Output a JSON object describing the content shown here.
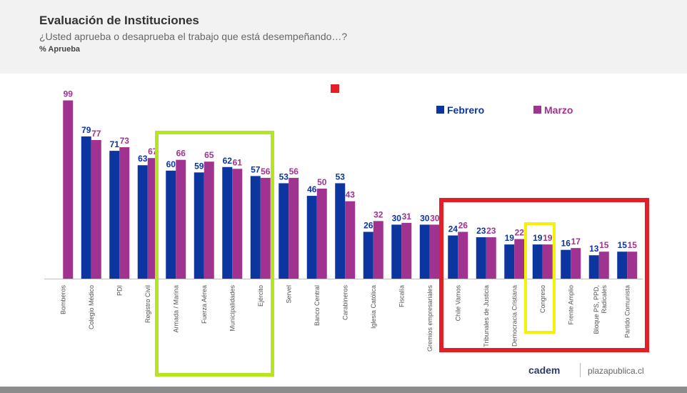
{
  "header": {
    "title": "Evaluación de Instituciones",
    "subtitle": "¿Usted aprueba o desaprueba el trabajo que está desempeñando…?",
    "measure": "% Aprueba"
  },
  "colors": {
    "febrero": "#0d35a0",
    "marzo": "#a0338f",
    "highlight_green": "#b5e61d",
    "highlight_red": "#e41e26",
    "highlight_yellow": "#f5f20a"
  },
  "chart_data": {
    "type": "bar",
    "categories": [
      "Bomberos",
      "Colegio Médico",
      "PDI",
      "Registro Civil",
      "Armada / Marina",
      "Fuerza Aérea",
      "Municipalidades",
      "Ejército",
      "Servel",
      "Banco Central",
      "Carabineros",
      "Iglesia Católica",
      "Fiscalía",
      "Gremios empresariales",
      "Chile Vamos",
      "Tribunales de Justicia",
      "Democracia Cristiana",
      "Congreso",
      "Frente Amplio",
      "Bloque PS, PPD, Radicales",
      "Partido Comunista"
    ],
    "series": [
      {
        "name": "Febrero",
        "values": [
          null,
          79,
          71,
          63,
          60,
          59,
          62,
          57,
          53,
          46,
          53,
          26,
          30,
          30,
          24,
          23,
          19,
          19,
          16,
          13,
          15
        ]
      },
      {
        "name": "Marzo",
        "values": [
          99,
          77,
          73,
          67,
          66,
          65,
          61,
          56,
          56,
          50,
          43,
          32,
          31,
          30,
          26,
          23,
          22,
          19,
          17,
          15,
          15
        ]
      }
    ],
    "legend_position": "top-right",
    "grid": false
  },
  "footer": {
    "brand": "cadem",
    "site": "plazapublica.cl"
  }
}
